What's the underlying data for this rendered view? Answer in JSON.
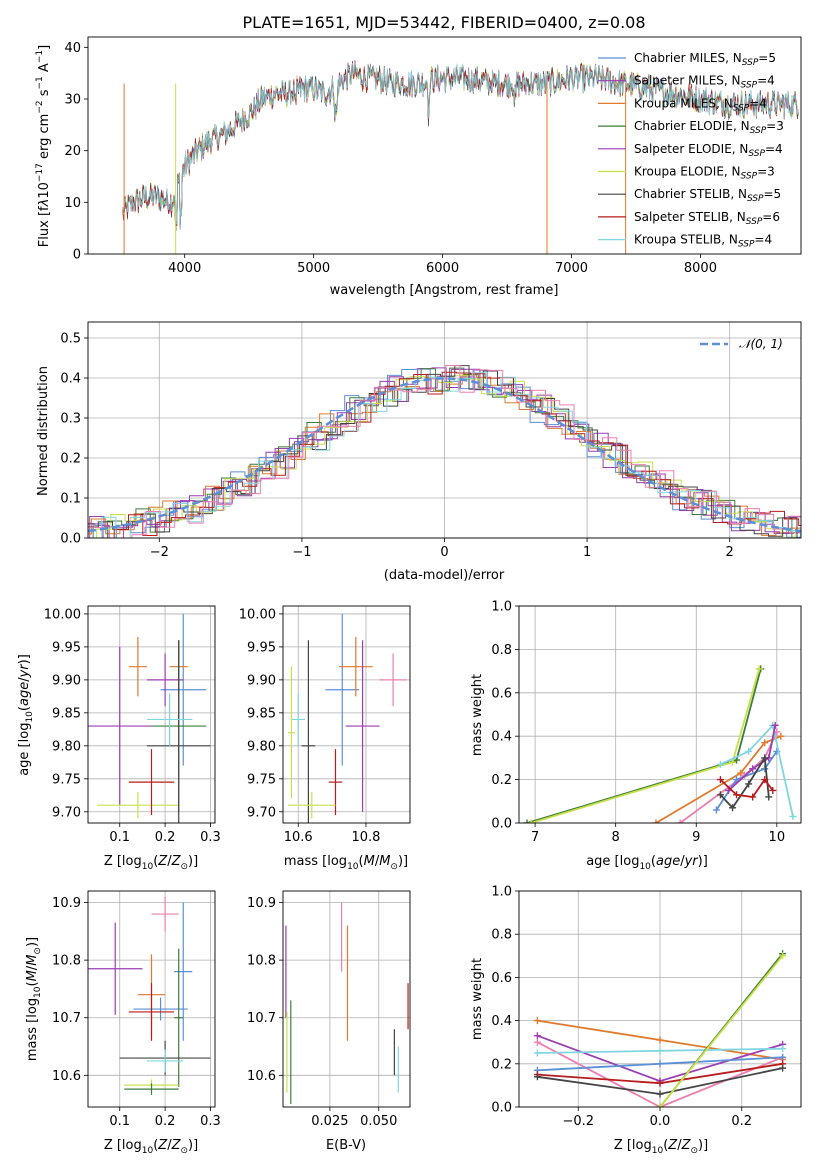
{
  "chart_data": [
    {
      "type": "line",
      "title": "PLATE=1651, MJD=53442, FIBERID=0400, z=0.08",
      "xlabel": "wavelength [Angstrom, rest frame]",
      "ylabel": "Flux [fλ10⁻¹⁷ erg cm⁻² s⁻¹ A⁻¹]",
      "xlim": [
        3250,
        8780
      ],
      "ylim": [
        0,
        42
      ],
      "xticks": [
        4000,
        5000,
        6000,
        7000,
        8000
      ],
      "yticks": [
        0,
        10,
        20,
        30,
        40
      ],
      "legend_position": "upper right",
      "series": [
        {
          "name": "Chabrier MILES, N_SSP=5",
          "color": "#5b8fd6"
        },
        {
          "name": "Salpeter MILES, N_SSP=4",
          "color": "#9b3db3"
        },
        {
          "name": "Kroupa MILES, N_SSP=4",
          "color": "#e07a2c"
        },
        {
          "name": "Chabrier ELODIE, N_SSP=3",
          "color": "#3f7d3c"
        },
        {
          "name": "Salpeter ELODIE, N_SSP=4",
          "color": "#9b3db3"
        },
        {
          "name": "Kroupa ELODIE, N_SSP=3",
          "color": "#c8e04a"
        },
        {
          "name": "Chabrier STELIB, N_SSP=5",
          "color": "#444444"
        },
        {
          "name": "Salpeter STELIB, N_SSP=6",
          "color": "#b81c1c"
        },
        {
          "name": "Kroupa STELIB, N_SSP=4",
          "color": "#7fd6e0"
        }
      ],
      "continuum": {
        "x": [
          3520,
          3600,
          3700,
          3800,
          3900,
          4000,
          4100,
          4200,
          4300,
          4400,
          4500,
          4600,
          4700,
          4800,
          4900,
          5000,
          5100,
          5200,
          5300,
          5400,
          5500,
          5600,
          5800,
          6000,
          6200,
          6400,
          6600,
          6800,
          7000,
          7200,
          7400,
          7600,
          7800,
          8000,
          8200,
          8400,
          8780
        ],
        "y": [
          8,
          10,
          11,
          11,
          10,
          17,
          20,
          22,
          23,
          25,
          27,
          30,
          31,
          31,
          32,
          32,
          31,
          33,
          35,
          34,
          34,
          33,
          33,
          34,
          34,
          33,
          33,
          33,
          34,
          34,
          33,
          32,
          31,
          30,
          29,
          29,
          29
        ]
      }
    },
    {
      "type": "bar",
      "xlabel": "(data-model)/error",
      "ylabel": "Normed distribution",
      "xlim": [
        -2.5,
        2.5
      ],
      "ylim": [
        0,
        0.54
      ],
      "xticks": [
        -2,
        -1,
        0,
        1,
        2
      ],
      "yticks": [
        0.0,
        0.1,
        0.2,
        0.3,
        0.4,
        0.5
      ],
      "legend": "𝒩(0, 1)",
      "legend_position": "upper right",
      "gaussian": {
        "mean": 0,
        "sd": 1,
        "color": "#5b8fd6"
      },
      "bin_width": 0.1
    },
    {
      "type": "scatter",
      "xlabel": "Z [log10(Z/Z☉)]",
      "ylabel": "age  [log10(age/yr)]",
      "xlim": [
        0.03,
        0.31
      ],
      "ylim": [
        9.683,
        10.012
      ],
      "xticks": [
        0.1,
        0.2,
        0.3
      ],
      "yticks": [
        9.7,
        9.75,
        9.8,
        9.85,
        9.9,
        9.95,
        10.0
      ],
      "points": [
        {
          "x": 0.24,
          "y": 9.885,
          "xerr": 0.05,
          "yerr": 0.115,
          "color": "#5b8fd6"
        },
        {
          "x": 0.2,
          "y": 9.9,
          "xerr": 0.04,
          "yerr": 0.04,
          "color": "#9b3db3"
        },
        {
          "x": 0.14,
          "y": 9.92,
          "xerr": 0.02,
          "yerr": 0.045,
          "color": "#e07a2c"
        },
        {
          "x": 0.23,
          "y": 9.92,
          "xerr": 0.02,
          "yerr": 0.04,
          "color": "#e07a2c"
        },
        {
          "x": 0.23,
          "y": 9.83,
          "xerr": 0.06,
          "yerr": 0.13,
          "color": "#3f7d3c"
        },
        {
          "x": 0.1,
          "y": 9.83,
          "xerr": 0.07,
          "yerr": 0.12,
          "color": "#9b3db3"
        },
        {
          "x": 0.14,
          "y": 9.71,
          "xerr": 0.09,
          "yerr": 0.02,
          "color": "#c8e04a"
        },
        {
          "x": 0.23,
          "y": 9.8,
          "xerr": 0.07,
          "yerr": 0.16,
          "color": "#444444"
        },
        {
          "x": 0.17,
          "y": 9.745,
          "xerr": 0.05,
          "yerr": 0.05,
          "color": "#b81c1c"
        },
        {
          "x": 0.21,
          "y": 9.84,
          "xerr": 0.05,
          "yerr": 0.04,
          "color": "#7fd6e0"
        }
      ]
    },
    {
      "type": "scatter",
      "xlabel": "mass [log10(M/M☉)]",
      "ylabel": "",
      "xlim": [
        10.555,
        10.93
      ],
      "ylim": [
        9.683,
        10.012
      ],
      "xticks": [
        10.6,
        10.8
      ],
      "yticks": [
        9.7,
        9.75,
        9.8,
        9.85,
        9.9,
        9.95,
        10.0
      ],
      "points": [
        {
          "x": 10.73,
          "y": 9.885,
          "xerr": 0.05,
          "yerr": 0.115,
          "color": "#5b8fd6"
        },
        {
          "x": 10.88,
          "y": 9.9,
          "xerr": 0.04,
          "yerr": 0.04,
          "color": "#ef7eb0"
        },
        {
          "x": 10.77,
          "y": 9.92,
          "xerr": 0.05,
          "yerr": 0.045,
          "color": "#e07a2c"
        },
        {
          "x": 10.79,
          "y": 9.83,
          "xerr": 0.05,
          "yerr": 0.13,
          "color": "#9b3db3"
        },
        {
          "x": 10.63,
          "y": 9.8,
          "xerr": 0.02,
          "yerr": 0.16,
          "color": "#444444"
        },
        {
          "x": 10.71,
          "y": 9.745,
          "xerr": 0.02,
          "yerr": 0.05,
          "color": "#b81c1c"
        },
        {
          "x": 10.6,
          "y": 9.84,
          "xerr": 0.02,
          "yerr": 0.04,
          "color": "#7fd6e0"
        },
        {
          "x": 10.64,
          "y": 9.71,
          "xerr": 0.07,
          "yerr": 0.02,
          "color": "#c8e04a"
        },
        {
          "x": 10.58,
          "y": 9.82,
          "xerr": 0.01,
          "yerr": 0.1,
          "color": "#c8e04a"
        }
      ]
    },
    {
      "type": "line",
      "xlabel": "age  [log10(age/yr)]",
      "ylabel": "mass weight",
      "xlim": [
        6.8,
        10.3
      ],
      "ylim": [
        0,
        1
      ],
      "xticks": [
        7,
        8,
        9,
        10
      ],
      "yticks": [
        0.0,
        0.2,
        0.4,
        0.6,
        0.8,
        1.0
      ],
      "series": [
        {
          "color": "#3f7d3c",
          "x": [
            6.9,
            9.5,
            9.8
          ],
          "y": [
            0.0,
            0.29,
            0.71
          ]
        },
        {
          "color": "#c8e04a",
          "x": [
            6.95,
            9.45,
            9.78
          ],
          "y": [
            0.0,
            0.28,
            0.71
          ]
        },
        {
          "color": "#e07a2c",
          "x": [
            8.5,
            9.55,
            9.85,
            10.05
          ],
          "y": [
            0.0,
            0.23,
            0.37,
            0.4
          ]
        },
        {
          "color": "#ef7eb0",
          "x": [
            8.8,
            9.6,
            9.85,
            10.0
          ],
          "y": [
            0.0,
            0.22,
            0.3,
            0.42
          ]
        },
        {
          "color": "#5b8fd6",
          "x": [
            9.25,
            9.5,
            9.85,
            10.0
          ],
          "y": [
            0.06,
            0.2,
            0.25,
            0.33
          ]
        },
        {
          "color": "#7fd6e0",
          "x": [
            9.3,
            9.65,
            9.95,
            10.2
          ],
          "y": [
            0.27,
            0.33,
            0.45,
            0.03
          ]
        },
        {
          "color": "#9b3db3",
          "x": [
            9.4,
            9.7,
            9.9,
            9.98
          ],
          "y": [
            0.15,
            0.25,
            0.3,
            0.45
          ]
        },
        {
          "color": "#444444",
          "x": [
            9.3,
            9.45,
            9.65,
            9.85,
            9.9
          ],
          "y": [
            0.13,
            0.07,
            0.18,
            0.3,
            0.12
          ]
        },
        {
          "color": "#b81c1c",
          "x": [
            9.3,
            9.5,
            9.7,
            9.85,
            9.95
          ],
          "y": [
            0.2,
            0.13,
            0.12,
            0.2,
            0.15
          ]
        }
      ]
    },
    {
      "type": "scatter",
      "xlabel": "Z [log10(Z/Z☉)]",
      "ylabel": "mass [log10(M/M☉)]",
      "xlim": [
        0.03,
        0.31
      ],
      "ylim": [
        10.545,
        10.92
      ],
      "xticks": [
        0.1,
        0.2,
        0.3
      ],
      "yticks": [
        10.6,
        10.7,
        10.8,
        10.9
      ],
      "points": [
        {
          "x": 0.2,
          "y": 10.88,
          "xerr": 0.03,
          "yerr": 0.03,
          "color": "#ef7eb0"
        },
        {
          "x": 0.24,
          "y": 10.78,
          "xerr": 0.02,
          "yerr": 0.12,
          "color": "#5b8fd6"
        },
        {
          "x": 0.09,
          "y": 10.785,
          "xerr": 0.06,
          "yerr": 0.08,
          "color": "#9b3db3"
        },
        {
          "x": 0.17,
          "y": 10.74,
          "xerr": 0.03,
          "yerr": 0.07,
          "color": "#e07a2c"
        },
        {
          "x": 0.19,
          "y": 10.715,
          "xerr": 0.06,
          "yerr": 0.02,
          "color": "#5b8fd6"
        },
        {
          "x": 0.17,
          "y": 10.71,
          "xerr": 0.05,
          "yerr": 0.05,
          "color": "#b81c1c"
        },
        {
          "x": 0.23,
          "y": 10.7,
          "xerr": 0.01,
          "yerr": 0.12,
          "color": "#3f7d3c"
        },
        {
          "x": 0.2,
          "y": 10.63,
          "xerr": 0.1,
          "yerr": 0.03,
          "color": "#444444"
        },
        {
          "x": 0.2,
          "y": 10.625,
          "xerr": 0.04,
          "yerr": 0.02,
          "color": "#7fd6e0"
        },
        {
          "x": 0.17,
          "y": 10.583,
          "xerr": 0.06,
          "yerr": 0.01,
          "color": "#c8e04a"
        },
        {
          "x": 0.17,
          "y": 10.576,
          "xerr": 0.06,
          "yerr": 0.01,
          "color": "#3f7d3c"
        }
      ]
    },
    {
      "type": "scatter",
      "xlabel": "E(B-V)",
      "ylabel": "",
      "xlim": [
        0.001,
        0.066
      ],
      "ylim": [
        10.545,
        10.92
      ],
      "xticks": [
        0.025,
        0.05
      ],
      "yticks": [
        10.6,
        10.7,
        10.8,
        10.9
      ],
      "points": [
        {
          "x": 0.0025,
          "y": 10.78,
          "yerr": 0.08,
          "color": "#9b3db3"
        },
        {
          "x": 0.003,
          "y": 10.64,
          "yerr": 0.07,
          "color": "#c8e04a"
        },
        {
          "x": 0.005,
          "y": 10.64,
          "yerr": 0.09,
          "color": "#3f7d3c"
        },
        {
          "x": 0.031,
          "y": 10.84,
          "yerr": 0.06,
          "color": "#ef7eb0"
        },
        {
          "x": 0.034,
          "y": 10.76,
          "yerr": 0.1,
          "color": "#e07a2c"
        },
        {
          "x": 0.058,
          "y": 10.64,
          "yerr": 0.04,
          "color": "#444444"
        },
        {
          "x": 0.06,
          "y": 10.61,
          "yerr": 0.04,
          "color": "#7fd6e0"
        },
        {
          "x": 0.065,
          "y": 10.72,
          "yerr": 0.04,
          "color": "#b81c1c"
        }
      ]
    },
    {
      "type": "line",
      "xlabel": "Z [log10(Z/Z☉)]",
      "ylabel": "mass weight",
      "xlim": [
        -0.345,
        0.345
      ],
      "ylim": [
        0,
        1
      ],
      "xticks": [
        -0.2,
        0.0,
        0.2
      ],
      "yticks": [
        0.0,
        0.2,
        0.4,
        0.6,
        0.8,
        1.0
      ],
      "series": [
        {
          "color": "#e07a2c",
          "x": [
            -0.3,
            0.0,
            0.3
          ],
          "y": [
            0.4,
            0.31,
            0.22
          ]
        },
        {
          "color": "#9b3db3",
          "x": [
            -0.3,
            0.0,
            0.3
          ],
          "y": [
            0.33,
            0.12,
            0.29
          ]
        },
        {
          "color": "#ef7eb0",
          "x": [
            -0.3,
            0.0,
            0.3
          ],
          "y": [
            0.3,
            0.0,
            0.23
          ]
        },
        {
          "color": "#7fd6e0",
          "x": [
            -0.3,
            0.0,
            0.3
          ],
          "y": [
            0.25,
            0.26,
            0.27
          ]
        },
        {
          "color": "#5b8fd6",
          "x": [
            -0.3,
            0.0,
            0.3
          ],
          "y": [
            0.17,
            0.2,
            0.23
          ]
        },
        {
          "color": "#b81c1c",
          "x": [
            -0.3,
            0.0,
            0.3
          ],
          "y": [
            0.15,
            0.11,
            0.2
          ]
        },
        {
          "color": "#444444",
          "x": [
            -0.3,
            0.0,
            0.3
          ],
          "y": [
            0.14,
            0.06,
            0.18
          ]
        },
        {
          "color": "#3f7d3c",
          "x": [
            0.0,
            0.3
          ],
          "y": [
            0.0,
            0.71
          ]
        },
        {
          "color": "#c8e04a",
          "x": [
            0.0,
            0.3
          ],
          "y": [
            0.0,
            0.7
          ]
        }
      ]
    }
  ]
}
